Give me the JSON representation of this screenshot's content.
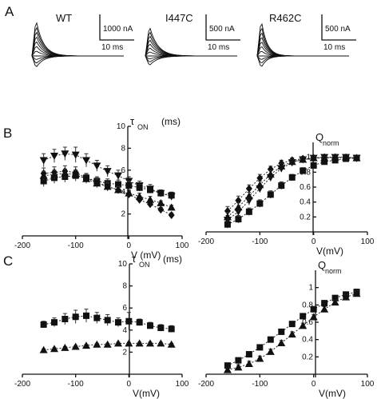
{
  "panels": {
    "a": "A",
    "b": "B",
    "c": "C"
  },
  "traces": [
    {
      "name": "WT",
      "current_scale": "1000 nA",
      "time_scale": "10 ms",
      "n_traces": 11
    },
    {
      "name": "I447C",
      "current_scale": "500 nA",
      "time_scale": "10 ms",
      "n_traces": 11
    },
    {
      "name": "R462C",
      "current_scale": "500 nA",
      "time_scale": "10 ms",
      "n_traces": 11
    }
  ],
  "chart_data": [
    {
      "id": "B-tau",
      "type": "scatter",
      "ylabel_sym": "τ",
      "ylabel_sub": "ON",
      "ylabel_unit": "(ms)",
      "xlabel": "V (mV)",
      "xlim": [
        -200,
        100
      ],
      "ylim": [
        0,
        10
      ],
      "xticks": [
        -200,
        -100,
        0,
        100
      ],
      "yticks": [
        2,
        4,
        6,
        8,
        10
      ],
      "series": [
        {
          "marker": "triangle-down",
          "x": [
            -160,
            -140,
            -120,
            -100,
            -80,
            -60,
            -40,
            -20,
            0,
            20,
            40,
            60,
            80
          ],
          "y": [
            6.9,
            7.3,
            7.5,
            7.4,
            6.9,
            6.4,
            5.9,
            5.5,
            5.0,
            4.6,
            4.3,
            3.9,
            3.6
          ],
          "err": [
            0.6,
            0.6,
            0.6,
            0.7,
            0.6,
            0.5,
            0.5,
            0.5,
            0.4,
            0.4,
            0.4,
            0.3,
            0.3
          ]
        },
        {
          "marker": "square",
          "x": [
            -160,
            -140,
            -120,
            -100,
            -80,
            -60,
            -40,
            -20,
            0,
            20,
            40,
            60,
            80
          ],
          "y": [
            5.0,
            5.3,
            5.4,
            5.5,
            5.3,
            5.0,
            4.8,
            4.7,
            4.6,
            4.4,
            4.2,
            3.9,
            3.7
          ],
          "err": [
            0.5,
            0.5,
            0.5,
            0.5,
            0.4,
            0.4,
            0.4,
            0.4,
            0.4,
            0.3,
            0.3,
            0.3,
            0.3
          ]
        },
        {
          "marker": "diamond",
          "x": [
            -160,
            -140,
            -120,
            -100,
            -80,
            -60,
            -40,
            -20,
            0,
            20,
            40,
            60,
            80
          ],
          "y": [
            5.7,
            5.8,
            5.9,
            5.8,
            5.3,
            4.9,
            4.5,
            4.2,
            3.8,
            3.3,
            2.9,
            2.4,
            1.9
          ],
          "err": [
            0.5,
            0.5,
            0.5,
            0.5,
            0.4,
            0.4,
            0.4,
            0.3,
            0.3,
            0.3,
            0.3,
            0.2,
            0.2
          ]
        },
        {
          "marker": "triangle-up",
          "x": [
            -160,
            -140,
            -120,
            -100,
            -80,
            -60,
            -40,
            -20,
            0,
            20,
            40,
            60,
            80
          ],
          "y": [
            5.5,
            5.6,
            5.7,
            5.6,
            5.2,
            4.8,
            4.5,
            4.2,
            3.9,
            3.6,
            3.3,
            3.0,
            2.6
          ],
          "err": [
            0.4,
            0.4,
            0.4,
            0.4,
            0.4,
            0.4,
            0.3,
            0.3,
            0.3,
            0.3,
            0.3,
            0.2,
            0.2
          ]
        }
      ]
    },
    {
      "id": "B-q",
      "type": "scatter",
      "ylabel_sym": "Q",
      "ylabel_sub": "norm",
      "xlabel": "V(mV)",
      "xlim": [
        -200,
        100
      ],
      "ylim": [
        0,
        1.2
      ],
      "xticks": [
        -200,
        -100,
        0,
        100
      ],
      "yticks": [
        0.2,
        0.4,
        0.6,
        0.8,
        1.0
      ],
      "series": [
        {
          "marker": "square",
          "x": [
            -160,
            -140,
            -120,
            -100,
            -80,
            -60,
            -40,
            -20,
            0,
            20,
            40,
            60,
            80
          ],
          "y": [
            0.1,
            0.17,
            0.27,
            0.38,
            0.5,
            0.62,
            0.73,
            0.82,
            0.89,
            0.94,
            0.96,
            0.98,
            0.99
          ],
          "err": [
            0.05,
            0.05,
            0.05,
            0.05,
            0.05,
            0.05,
            0.04,
            0.04,
            0.03,
            0.03,
            0.02,
            0.02,
            0.02
          ]
        },
        {
          "marker": "triangle-down",
          "x": [
            -160,
            -140,
            -120,
            -100,
            -80,
            -60,
            -40,
            -20,
            0,
            20,
            40,
            60,
            80
          ],
          "y": [
            0.16,
            0.27,
            0.42,
            0.58,
            0.73,
            0.85,
            0.93,
            0.97,
            0.99,
            1.0,
            1.0,
            1.0,
            0.99
          ],
          "err": [
            0.06,
            0.06,
            0.06,
            0.05,
            0.05,
            0.04,
            0.03,
            0.03,
            0.02,
            0.02,
            0.02,
            0.02,
            0.02
          ]
        },
        {
          "marker": "diamond",
          "x": [
            -160,
            -140,
            -120,
            -100,
            -80,
            -60,
            -40,
            -20,
            0,
            20,
            40,
            60,
            80
          ],
          "y": [
            0.28,
            0.42,
            0.58,
            0.72,
            0.84,
            0.92,
            0.96,
            0.98,
            0.99,
            1.0,
            1.0,
            0.99,
            0.99
          ],
          "err": [
            0.06,
            0.06,
            0.05,
            0.05,
            0.04,
            0.04,
            0.03,
            0.03,
            0.02,
            0.02,
            0.02,
            0.02,
            0.02
          ]
        },
        {
          "marker": "triangle-up",
          "x": [
            -160,
            -140,
            -120,
            -100,
            -80,
            -60,
            -40,
            -20,
            0,
            20,
            40,
            60,
            80
          ],
          "y": [
            0.2,
            0.33,
            0.48,
            0.63,
            0.77,
            0.88,
            0.94,
            0.97,
            0.99,
            0.99,
            1.0,
            1.0,
            0.99
          ],
          "err": [
            0.06,
            0.06,
            0.05,
            0.05,
            0.05,
            0.04,
            0.03,
            0.03,
            0.02,
            0.02,
            0.02,
            0.02,
            0.02
          ]
        }
      ]
    },
    {
      "id": "C-tau",
      "type": "scatter",
      "ylabel_sym": "τ",
      "ylabel_sub": "ON",
      "ylabel_unit": "(ms)",
      "xlabel": "V(mV)",
      "xlim": [
        -200,
        100
      ],
      "ylim": [
        0,
        10
      ],
      "xticks": [
        -200,
        -100,
        0,
        100
      ],
      "yticks": [
        2,
        4,
        6,
        8,
        10
      ],
      "series": [
        {
          "marker": "square",
          "x": [
            -160,
            -140,
            -120,
            -100,
            -80,
            -60,
            -40,
            -20,
            0,
            20,
            40,
            60,
            80
          ],
          "y": [
            4.5,
            4.7,
            5.0,
            5.2,
            5.3,
            5.1,
            4.9,
            4.7,
            4.8,
            4.7,
            4.4,
            4.2,
            4.1
          ],
          "err": [
            0.3,
            0.4,
            0.5,
            0.6,
            0.6,
            0.5,
            0.5,
            0.4,
            0.8,
            0.3,
            0.3,
            0.3,
            0.3
          ]
        },
        {
          "marker": "triangle-up",
          "x": [
            -160,
            -140,
            -120,
            -100,
            -80,
            -60,
            -40,
            -20,
            0,
            20,
            40,
            60,
            80
          ],
          "y": [
            2.2,
            2.3,
            2.4,
            2.5,
            2.6,
            2.7,
            2.7,
            2.8,
            2.8,
            2.8,
            2.8,
            2.8,
            2.7
          ],
          "err": [
            0.1,
            0.1,
            0.1,
            0.1,
            0.1,
            0.1,
            0.1,
            0.1,
            0.1,
            0.1,
            0.1,
            0.1,
            0.1
          ]
        }
      ]
    },
    {
      "id": "C-q",
      "type": "scatter",
      "ylabel_sym": "Q",
      "ylabel_sub": "norm",
      "xlabel": "V(mV)",
      "xlim": [
        -200,
        100
      ],
      "ylim": [
        0,
        1.2
      ],
      "xticks": [
        -200,
        -100,
        0,
        100
      ],
      "yticks": [
        0.2,
        0.4,
        0.6,
        0.8,
        1.0
      ],
      "series": [
        {
          "marker": "square",
          "x": [
            -160,
            -140,
            -120,
            -100,
            -80,
            -60,
            -40,
            -20,
            0,
            20,
            40,
            60,
            80
          ],
          "y": [
            0.1,
            0.16,
            0.23,
            0.31,
            0.4,
            0.49,
            0.58,
            0.67,
            0.75,
            0.82,
            0.88,
            0.92,
            0.95
          ],
          "err": [
            0.03,
            0.03,
            0.03,
            0.03,
            0.03,
            0.03,
            0.03,
            0.03,
            0.03,
            0.03,
            0.03,
            0.03,
            0.03
          ]
        },
        {
          "marker": "triangle-up",
          "x": [
            -160,
            -140,
            -120,
            -100,
            -80,
            -60,
            -40,
            -20,
            0,
            20,
            40,
            60,
            80
          ],
          "y": [
            0.05,
            0.08,
            0.12,
            0.18,
            0.26,
            0.36,
            0.46,
            0.56,
            0.66,
            0.75,
            0.83,
            0.89,
            0.93
          ],
          "err": [
            0.03,
            0.03,
            0.03,
            0.03,
            0.03,
            0.03,
            0.03,
            0.03,
            0.03,
            0.03,
            0.03,
            0.03,
            0.03
          ]
        }
      ]
    }
  ]
}
